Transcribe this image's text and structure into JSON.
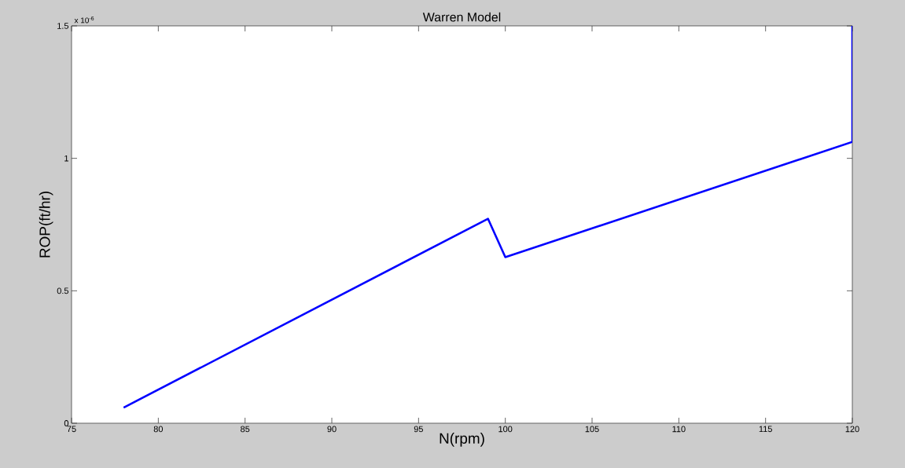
{
  "chart_data": {
    "type": "line",
    "title": "Warren Model",
    "xlabel": "N(rpm)",
    "ylabel": "ROP(ft/hr)",
    "annotations": [
      "x 10$^{-6}$"
    ],
    "x": [
      78,
      99,
      100,
      120,
      120
    ],
    "series": [
      {
        "color": "#0000ff",
        "values": [
          0.059,
          0.772,
          0.627,
          1.062,
          1.5
        ]
      }
    ],
    "xlim": [
      75,
      120
    ],
    "xticks": [
      75,
      80,
      85,
      90,
      95,
      100,
      105,
      110,
      115,
      120
    ],
    "ylim": [
      0,
      1.5
    ],
    "yticks": [
      0,
      0.5,
      1,
      1.5
    ],
    "grid": false,
    "marker": "none",
    "line_style": "solid"
  }
}
